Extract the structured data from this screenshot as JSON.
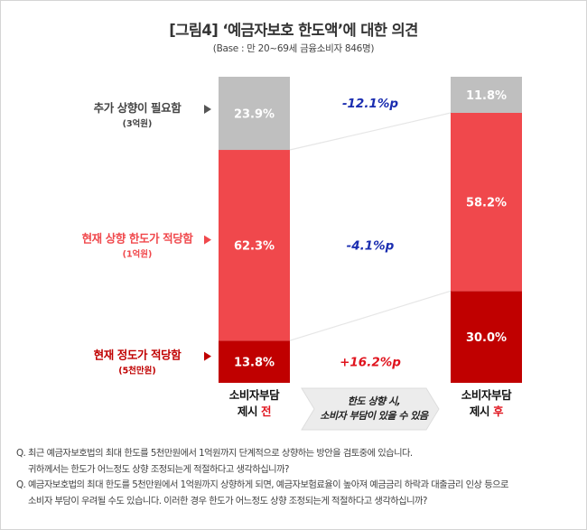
{
  "title": "[그림4] ‘예금자보호 한도액’에 대한 의견",
  "subtitle": "(Base : 만 20~69세 금융소비자 846명)",
  "chart_data": {
    "type": "bar",
    "stacked": true,
    "ylim": [
      0,
      100
    ],
    "colors": {
      "segment_top": "#bfbfbf",
      "segment_mid": "#f0484c",
      "segment_bottom": "#c00000",
      "change_negative": "#1a2db0",
      "change_positive": "#e0141e",
      "connector": "#e6e6e6",
      "arrow_fill": "#ececec"
    },
    "categories": [
      {
        "line1": "소비자부담",
        "line2_prefix": "제시 ",
        "line2_accent": "전"
      },
      {
        "line1": "소비자부담",
        "line2_prefix": "제시 ",
        "line2_accent": "후"
      }
    ],
    "series": [
      {
        "key": "bottom",
        "name": "현재 정도가 적당함",
        "sub": "(5천만원)",
        "values": [
          13.8,
          30.0
        ],
        "labels": [
          "13.8%",
          "30.0%"
        ],
        "change": "+16.2%p"
      },
      {
        "key": "mid",
        "name": "현재 상향 한도가 적당함",
        "sub": "(1억원)",
        "values": [
          62.3,
          58.2
        ],
        "labels": [
          "62.3%",
          "58.2%"
        ],
        "change": "-4.1%p"
      },
      {
        "key": "top",
        "name": "추가 상향이 필요함",
        "sub": "(3억원)",
        "values": [
          23.9,
          11.8
        ],
        "labels": [
          "23.9%",
          "11.8%"
        ],
        "change": "-12.1%p"
      }
    ],
    "transition_label": [
      "한도 상향 시,",
      "소비자 부담이 있을 수 있음"
    ]
  },
  "notes": {
    "q1_line1": "Q. 최근 예금자보호법의 최대 한도를 5천만원에서 1억원까지 단계적으로 상향하는 방안을 검토중에 있습니다.",
    "q1_line2": "귀하께서는 한도가 어느정도 상향 조정되는게 적절하다고 생각하십니까?",
    "q2_line1": "Q. 예금자보호법의 최대 한도를 5천만원에서 1억원까지 상향하게 되면, 예금자보험료율이 높아져 예금금리 하락과 대출금리 인상 등으로",
    "q2_line2": "소비자 부담이 우려될 수도 있습니다. 이러한 경우 한도가 어느정도 상향 조정되는게 적절하다고 생각하십니까?"
  }
}
